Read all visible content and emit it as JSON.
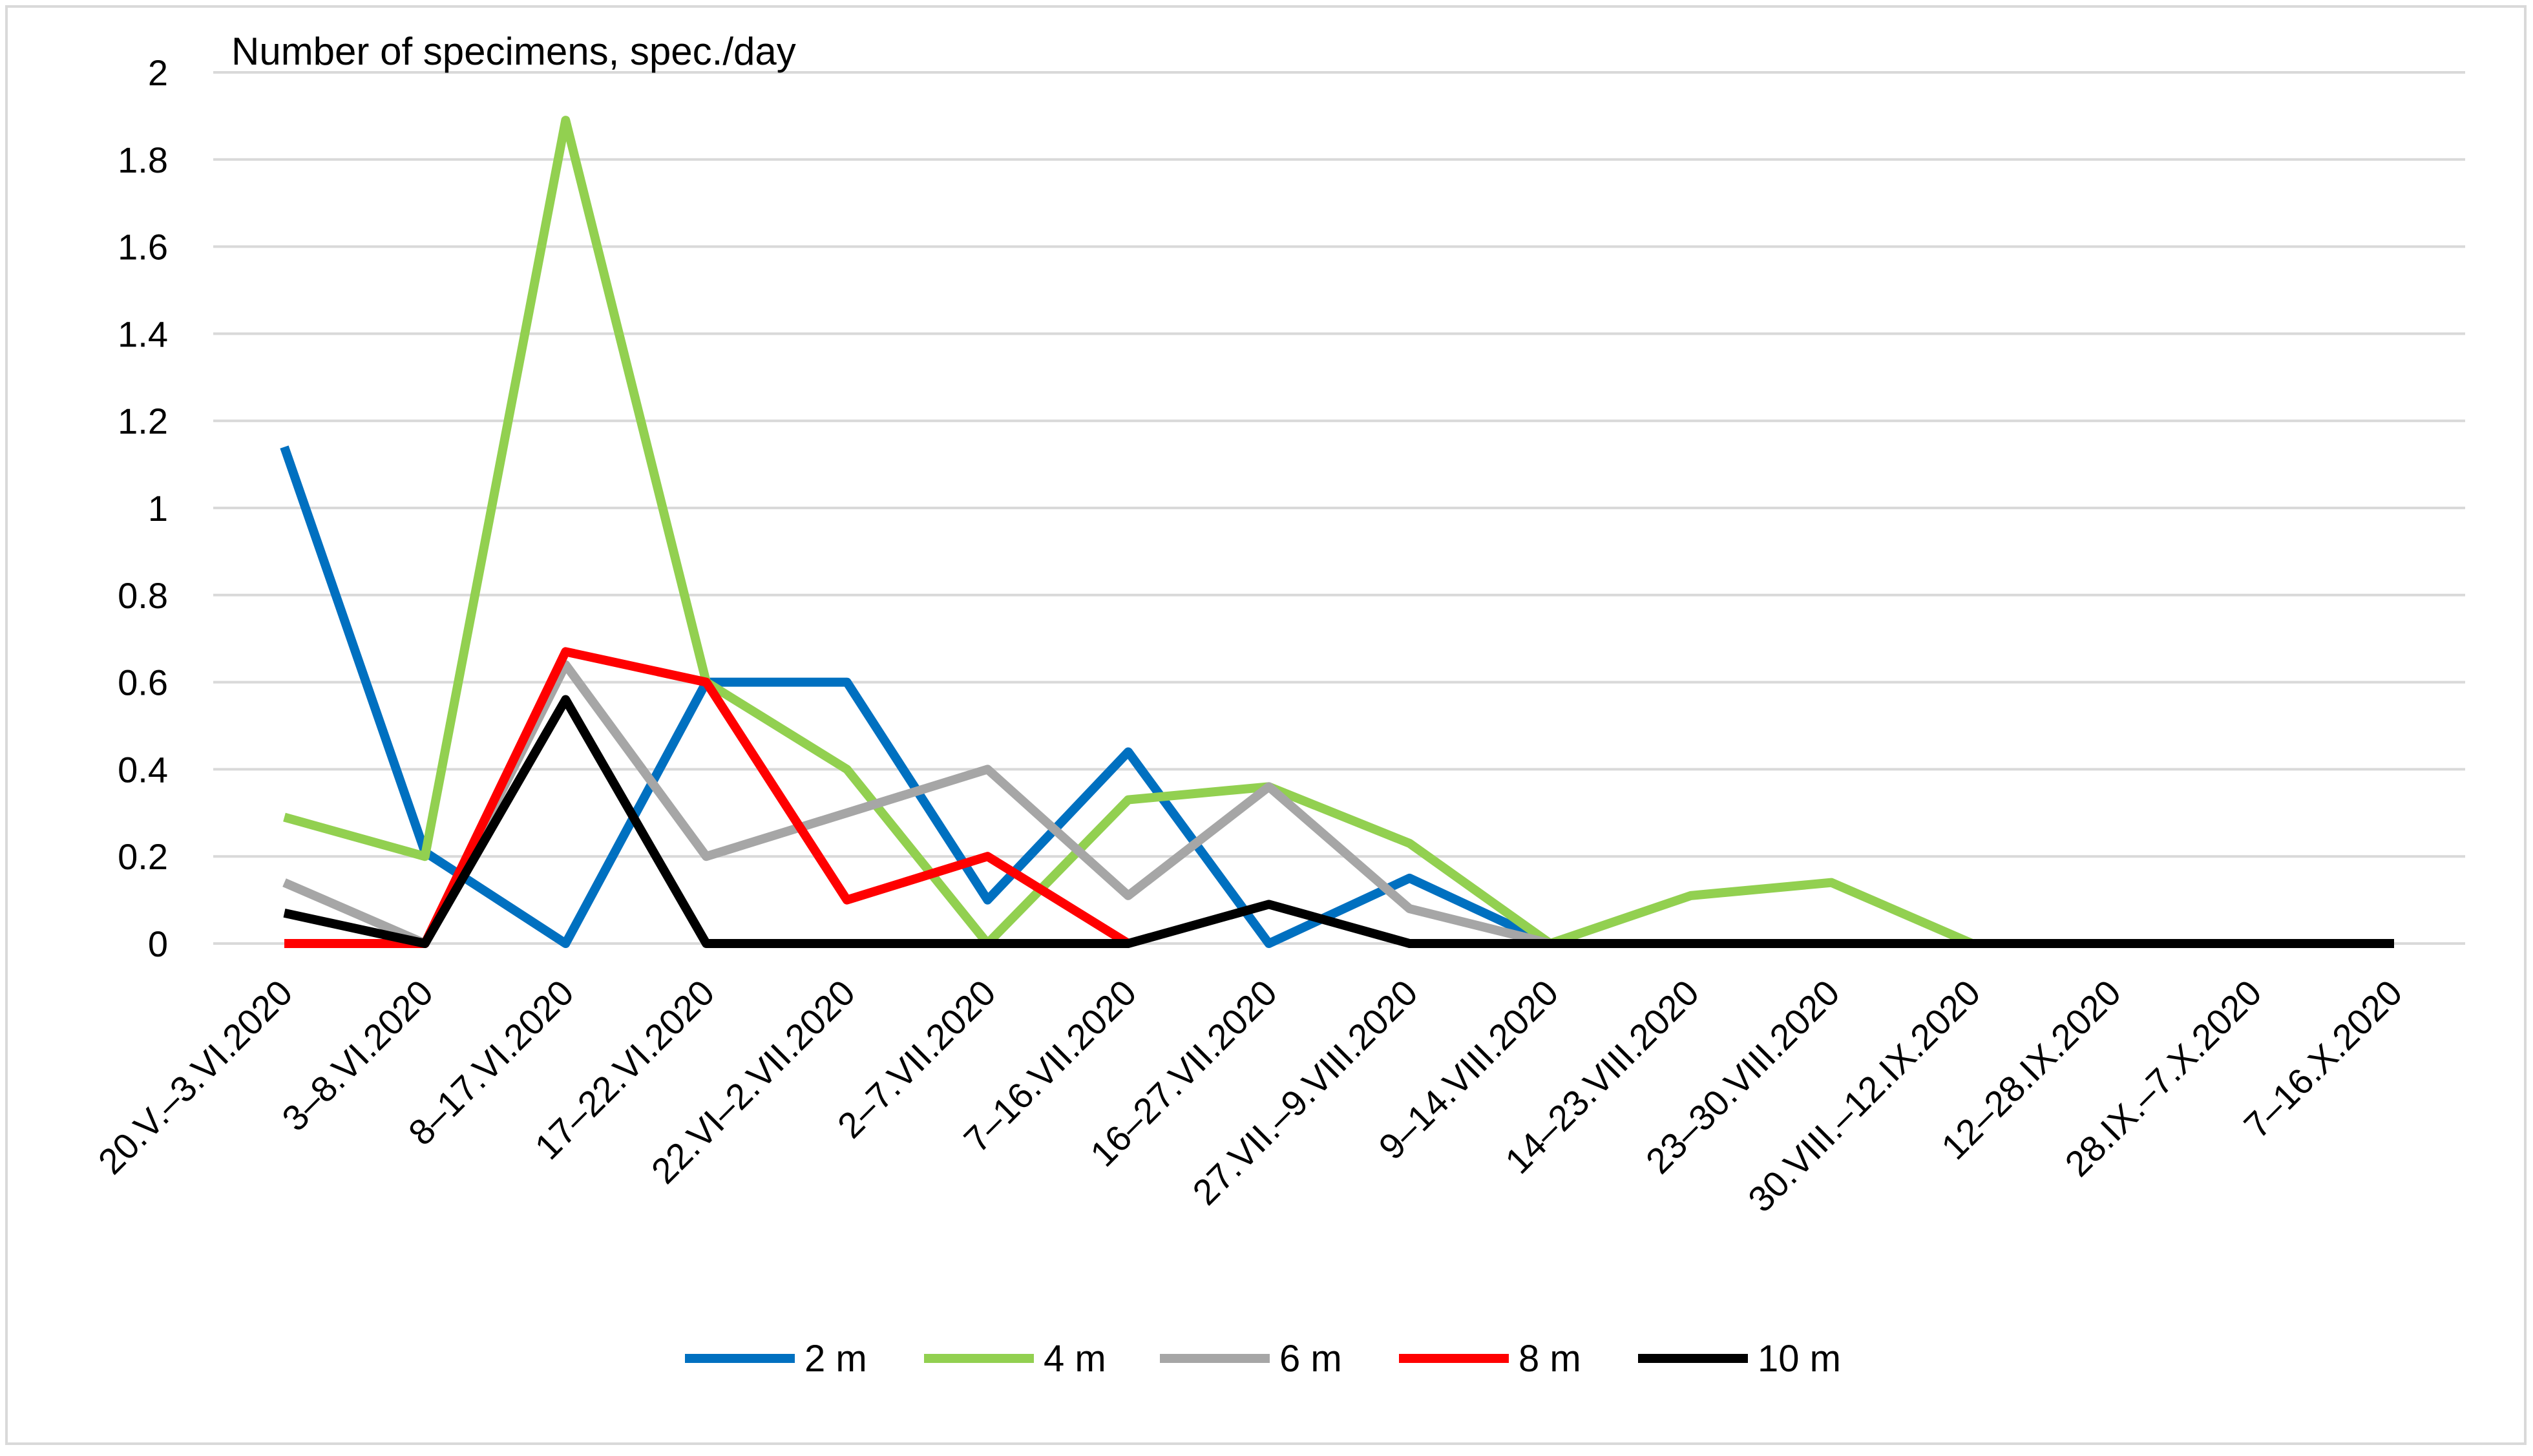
{
  "chart_data": {
    "type": "line",
    "title": "",
    "xlabel": "",
    "ylabel": "Number of specimens, spec./day",
    "ylim": [
      0,
      2
    ],
    "yticks": [
      "0",
      "0.2",
      "0.4",
      "0.6",
      "0.8",
      "1",
      "1.2",
      "1.4",
      "1.6",
      "1.8",
      "2"
    ],
    "grid": true,
    "legend_position": "bottom",
    "categories": [
      "20.V.–3.VI.2020",
      "3–8.VI.2020",
      "8–17.VI.2020",
      "17–22.VI.2020",
      "22.VI–2.VII.2020",
      "2–7.VII.2020",
      "7–16.VII.2020",
      "16–27.VII.2020",
      "27.VII.–9.VIII.2020",
      "9–14.VIII.2020",
      "14–23.VIII.2020",
      "23–30.VIII.2020",
      "30.VIII.–12.IX.2020",
      "12–28.IX.2020",
      "28.IX.–7.X.2020",
      "7–16.X.2020"
    ],
    "series": [
      {
        "name": "2 m",
        "color": "#0070C0",
        "values": [
          1.14,
          0.21,
          0,
          0.6,
          0.6,
          0.1,
          0.44,
          0,
          0.15,
          0,
          null,
          null,
          null,
          null,
          null,
          null
        ]
      },
      {
        "name": "4 m",
        "color": "#92D050",
        "values": [
          0.29,
          0.2,
          1.89,
          0.6,
          0.4,
          0,
          0.33,
          0.36,
          0.23,
          0,
          0.11,
          0.14,
          0,
          null,
          null,
          null
        ]
      },
      {
        "name": "6 m",
        "color": "#A6A6A6",
        "values": [
          0.14,
          0,
          0.64,
          0.2,
          0.3,
          0.4,
          0.11,
          0.36,
          0.08,
          0,
          null,
          null,
          null,
          null,
          null,
          null
        ]
      },
      {
        "name": "8 m",
        "color": "#FF0000",
        "values": [
          0,
          0,
          0.67,
          0.6,
          0.1,
          0.2,
          0,
          null,
          null,
          null,
          null,
          null,
          null,
          null,
          null,
          null
        ]
      },
      {
        "name": "10 m",
        "color": "#000000",
        "values": [
          0.07,
          0,
          0.56,
          0,
          0,
          0,
          0,
          0.09,
          0,
          0,
          0,
          0,
          0,
          0,
          0,
          0
        ]
      }
    ]
  }
}
